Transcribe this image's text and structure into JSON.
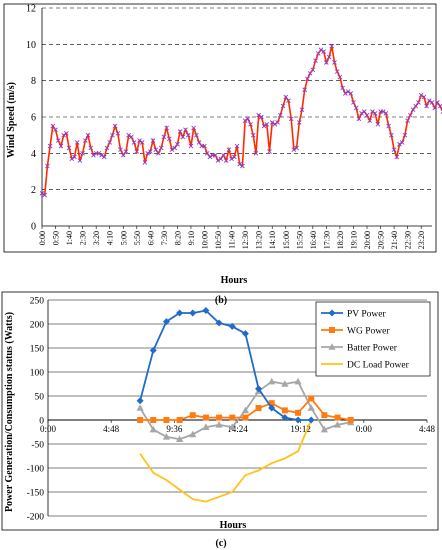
{
  "chart_data": [
    {
      "type": "line",
      "panel_label": "(b)",
      "xlabel": "Hours",
      "ylabel": "Wind Speed (m/s)",
      "ylim": [
        0,
        12
      ],
      "yticks": [
        0,
        2,
        4,
        6,
        8,
        10,
        12
      ],
      "grid": "dashed horizontal",
      "x_ticks": [
        "0:00",
        "0:50",
        "1:40",
        "2:30",
        "3:20",
        "4:10",
        "5:00",
        "5:50",
        "6:40",
        "7:30",
        "8:20",
        "9:10",
        "10:00",
        "10:50",
        "11:40",
        "12:30",
        "13:20",
        "14:10",
        "15:00",
        "15:50",
        "16:40",
        "17:30",
        "18:20",
        "19:10",
        "20:00",
        "20:50",
        "21:40",
        "22:30",
        "23:20"
      ],
      "colors": {
        "line": "#ff2a00",
        "marker": "#8a3ccf"
      },
      "series": [
        {
          "x_start_minutes": 0,
          "x_step_minutes": 10,
          "values": [
            1.8,
            1.7,
            3.3,
            4.4,
            5.5,
            5.3,
            4.7,
            4.4,
            5.0,
            5.1,
            4.3,
            3.7,
            3.8,
            4.6,
            3.6,
            4.0,
            4.7,
            5.0,
            4.3,
            3.9,
            4.0,
            4.0,
            3.9,
            3.8,
            4.3,
            4.6,
            5.0,
            5.5,
            5.1,
            4.2,
            3.9,
            4.1,
            5.0,
            4.9,
            4.6,
            4.1,
            4.7,
            4.6,
            3.5,
            4.0,
            4.1,
            4.7,
            4.2,
            4.0,
            4.3,
            4.9,
            5.4,
            4.8,
            4.2,
            4.3,
            4.5,
            5.2,
            4.9,
            5.3,
            5.0,
            4.4,
            5.4,
            5.0,
            4.6,
            4.4,
            4.4,
            4.0,
            3.8,
            3.9,
            3.9,
            3.6,
            3.7,
            3.9,
            3.6,
            4.2,
            3.7,
            3.8,
            4.4,
            3.4,
            3.3,
            5.8,
            5.9,
            5.6,
            5.0,
            4.0,
            6.1,
            6.0,
            5.5,
            5.6,
            4.1,
            5.7,
            5.6,
            5.7,
            6.1,
            6.6,
            7.1,
            6.9,
            5.9,
            4.2,
            4.3,
            5.7,
            6.4,
            7.5,
            8.1,
            8.4,
            8.6,
            9.1,
            9.5,
            9.7,
            9.6,
            9.0,
            9.3,
            9.9,
            9.0,
            8.5,
            8.2,
            7.6,
            7.3,
            7.4,
            7.3,
            6.8,
            6.5,
            5.9,
            6.2,
            6.3,
            6.1,
            5.8,
            6.3,
            6.2,
            5.6,
            6.3,
            6.3,
            6.2,
            5.5,
            5.0,
            4.2,
            3.8,
            4.5,
            4.6,
            5.0,
            5.8,
            6.1,
            6.4,
            6.6,
            6.8,
            7.2,
            7.1,
            6.6,
            6.9,
            6.8,
            6.5,
            6.8,
            6.6,
            6.3,
            6.4,
            6.2,
            6.3
          ]
        }
      ]
    },
    {
      "type": "line",
      "panel_label": "(c)",
      "xlabel": "Hours",
      "ylabel": "Power Generation/Consumption status (Watts)",
      "ylim": [
        -200,
        250
      ],
      "yticks": [
        -200,
        -150,
        -100,
        -50,
        0,
        50,
        100,
        150,
        200,
        250
      ],
      "xlim_hours": [
        0,
        28.8
      ],
      "x_ticks": [
        "0:00",
        "4:48",
        "9:36",
        "14:24",
        "19:12",
        "0:00",
        "4:48"
      ],
      "grid": "solid horizontal",
      "legend_position": "top-right",
      "series": [
        {
          "name": "PV Power",
          "color": "#1f6cc9",
          "marker": "diamond",
          "x_hours": [
            7,
            8,
            9,
            10,
            11,
            12,
            13,
            14,
            15,
            16,
            17,
            18,
            19,
            20
          ],
          "values": [
            40,
            145,
            205,
            223,
            223,
            228,
            202,
            195,
            180,
            65,
            25,
            5,
            0,
            0
          ]
        },
        {
          "name": "WG Power",
          "color": "#ff7b12",
          "marker": "square",
          "x_hours": [
            7,
            8,
            9,
            10,
            11,
            12,
            13,
            14,
            15,
            16,
            17,
            18,
            19,
            20,
            21,
            22,
            23
          ],
          "values": [
            0,
            0,
            0,
            0,
            10,
            5,
            5,
            5,
            5,
            25,
            35,
            20,
            15,
            45,
            10,
            5,
            0
          ]
        },
        {
          "name": "Batter Power",
          "color": "#a6a6a6",
          "marker": "triangle",
          "x_hours": [
            7,
            8,
            9,
            10,
            11,
            12,
            13,
            14,
            15,
            16,
            17,
            18,
            19,
            20,
            21,
            22,
            23
          ],
          "values": [
            25,
            -20,
            -35,
            -40,
            -30,
            -15,
            -10,
            -15,
            20,
            60,
            80,
            75,
            80,
            25,
            -20,
            -10,
            -5
          ]
        },
        {
          "name": "DC Load Power",
          "color": "#ffc21a",
          "marker": "none",
          "x_hours": [
            7,
            8,
            9,
            10,
            11,
            12,
            13,
            14,
            15,
            16,
            17,
            18,
            19,
            20
          ],
          "values": [
            -70,
            -110,
            -125,
            -145,
            -165,
            -170,
            -160,
            -150,
            -115,
            -105,
            -90,
            -80,
            -65,
            0
          ]
        }
      ]
    }
  ]
}
